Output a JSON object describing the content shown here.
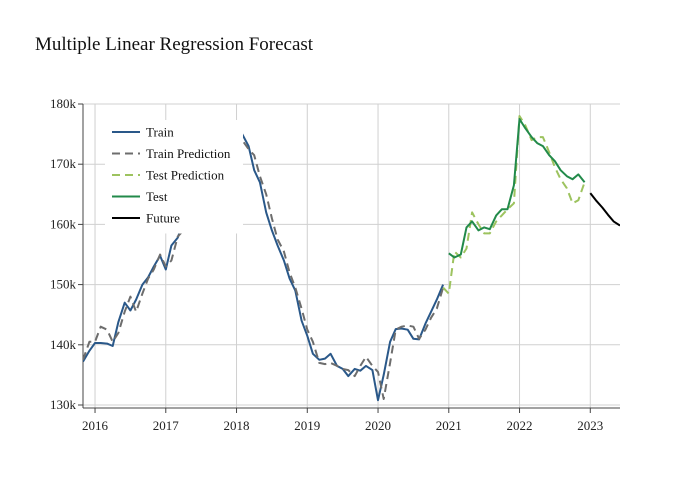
{
  "chart_data": {
    "type": "line",
    "title": "Multiple Linear Regression Forecast",
    "xlabel": "",
    "ylabel": "",
    "xlim": [
      2015.83,
      2023.42
    ],
    "ylim": [
      129500,
      180000
    ],
    "x_ticks": [
      {
        "value": 2016,
        "label": "2016"
      },
      {
        "value": 2017,
        "label": "2017"
      },
      {
        "value": 2018,
        "label": "2018"
      },
      {
        "value": 2019,
        "label": "2019"
      },
      {
        "value": 2020,
        "label": "2020"
      },
      {
        "value": 2021,
        "label": "2021"
      },
      {
        "value": 2022,
        "label": "2022"
      },
      {
        "value": 2023,
        "label": "2023"
      }
    ],
    "y_ticks": [
      {
        "value": 130000,
        "label": "130k"
      },
      {
        "value": 140000,
        "label": "140k"
      },
      {
        "value": 150000,
        "label": "150k"
      },
      {
        "value": 160000,
        "label": "160k"
      },
      {
        "value": 170000,
        "label": "170k"
      },
      {
        "value": 180000,
        "label": "180k"
      }
    ],
    "grid": true,
    "legend_position": "top-left",
    "series": [
      {
        "name": "Train",
        "color": "#2a5889",
        "dash": "solid",
        "x": [
          2015.83,
          2015.92,
          2016.0,
          2016.08,
          2016.17,
          2016.25,
          2016.33,
          2016.42,
          2016.5,
          2016.58,
          2016.67,
          2016.75,
          2016.83,
          2016.92,
          2017.0,
          2017.08,
          2017.17,
          2017.25,
          2017.33,
          2017.42,
          2017.5,
          2017.58,
          2017.67,
          2017.75,
          2017.83,
          2017.92,
          2018.0,
          2018.08,
          2018.17,
          2018.25,
          2018.33,
          2018.42,
          2018.5,
          2018.58,
          2018.67,
          2018.75,
          2018.83,
          2018.92,
          2019.0,
          2019.08,
          2019.17,
          2019.25,
          2019.33,
          2019.42,
          2019.5,
          2019.58,
          2019.67,
          2019.75,
          2019.83,
          2019.92,
          2020.0,
          2020.08,
          2020.17,
          2020.25,
          2020.33,
          2020.42,
          2020.5,
          2020.58,
          2020.67,
          2020.75,
          2020.83,
          2020.92
        ],
        "y": [
          137200,
          139000,
          140300,
          140300,
          140200,
          139800,
          143800,
          147000,
          145700,
          147500,
          150000,
          151200,
          153000,
          154800,
          152500,
          156500,
          157800,
          160500,
          163000,
          166000,
          168500,
          171000,
          172500,
          173500,
          174500,
          175500,
          176000,
          175000,
          173000,
          169000,
          167000,
          162000,
          159000,
          156500,
          154000,
          151000,
          149000,
          144000,
          141500,
          138500,
          137500,
          137700,
          138500,
          136500,
          136000,
          134800,
          136000,
          135700,
          136500,
          135800,
          130800,
          135000,
          140500,
          142600,
          142700,
          142500,
          141000,
          140900,
          143500,
          145500,
          147500,
          150000
        ]
      },
      {
        "name": "Train Prediction",
        "color": "#6d6d6d",
        "dash": "dashed",
        "x": [
          2015.83,
          2015.92,
          2016.0,
          2016.08,
          2016.17,
          2016.25,
          2016.33,
          2016.42,
          2016.5,
          2016.58,
          2016.67,
          2016.75,
          2016.83,
          2016.92,
          2017.0,
          2017.08,
          2017.17,
          2017.25,
          2017.33,
          2017.42,
          2017.5,
          2017.58,
          2017.67,
          2017.75,
          2017.83,
          2017.92,
          2018.0,
          2018.08,
          2018.17,
          2018.25,
          2018.33,
          2018.42,
          2018.5,
          2018.58,
          2018.67,
          2018.75,
          2018.83,
          2018.92,
          2019.0,
          2019.08,
          2019.17,
          2019.25,
          2019.33,
          2019.42,
          2019.5,
          2019.58,
          2019.67,
          2019.75,
          2019.83,
          2019.92,
          2020.0,
          2020.08,
          2020.17,
          2020.25,
          2020.33,
          2020.42,
          2020.5,
          2020.58,
          2020.67,
          2020.75,
          2020.83,
          2020.92
        ],
        "y": [
          137500,
          140500,
          140500,
          143000,
          142500,
          140500,
          142000,
          145500,
          148000,
          145500,
          148500,
          151000,
          152500,
          155000,
          153000,
          154000,
          158000,
          159000,
          162000,
          164500,
          167000,
          170000,
          172000,
          173500,
          174500,
          175500,
          176000,
          174000,
          172500,
          171500,
          168000,
          165000,
          161000,
          157500,
          155500,
          152000,
          149500,
          146000,
          142500,
          140500,
          137000,
          136800,
          137000,
          136500,
          136000,
          135800,
          134800,
          136500,
          138000,
          136500,
          135500,
          131000,
          137000,
          142500,
          143000,
          143200,
          143000,
          141000,
          142500,
          144500,
          146000,
          149500
        ]
      },
      {
        "name": "Test Prediction",
        "color": "#9dc35f",
        "dash": "dashed",
        "x": [
          2020.92,
          2021.0,
          2021.08,
          2021.17,
          2021.25,
          2021.33,
          2021.42,
          2021.5,
          2021.58,
          2021.67,
          2021.75,
          2021.83,
          2021.92,
          2022.0,
          2022.08,
          2022.17,
          2022.25,
          2022.33,
          2022.42,
          2022.5,
          2022.58,
          2022.67,
          2022.75,
          2022.83,
          2022.92
        ],
        "y": [
          149500,
          148500,
          155500,
          154500,
          156000,
          162000,
          160000,
          158500,
          158500,
          160500,
          161500,
          162500,
          163500,
          178000,
          176500,
          174000,
          174500,
          174500,
          172000,
          169500,
          167500,
          166000,
          163500,
          164000,
          167000
        ]
      },
      {
        "name": "Test",
        "color": "#228a4a",
        "dash": "solid",
        "x": [
          2021.0,
          2021.08,
          2021.17,
          2021.25,
          2021.33,
          2021.42,
          2021.5,
          2021.58,
          2021.67,
          2021.75,
          2021.83,
          2021.92,
          2022.0,
          2022.08,
          2022.17,
          2022.25,
          2022.33,
          2022.42,
          2022.5,
          2022.58,
          2022.67,
          2022.75,
          2022.83,
          2022.92
        ],
        "y": [
          155200,
          154500,
          155000,
          159500,
          160500,
          159000,
          159500,
          159200,
          161500,
          162500,
          162500,
          166500,
          177500,
          176000,
          174500,
          173500,
          173000,
          171500,
          170500,
          169000,
          168000,
          167500,
          168300,
          167000
        ]
      },
      {
        "name": "Future",
        "color": "#000000",
        "dash": "solid",
        "x": [
          2023.0,
          2023.08,
          2023.17,
          2023.25,
          2023.33,
          2023.42
        ],
        "y": [
          165200,
          164000,
          162800,
          161600,
          160500,
          159800
        ]
      }
    ]
  }
}
